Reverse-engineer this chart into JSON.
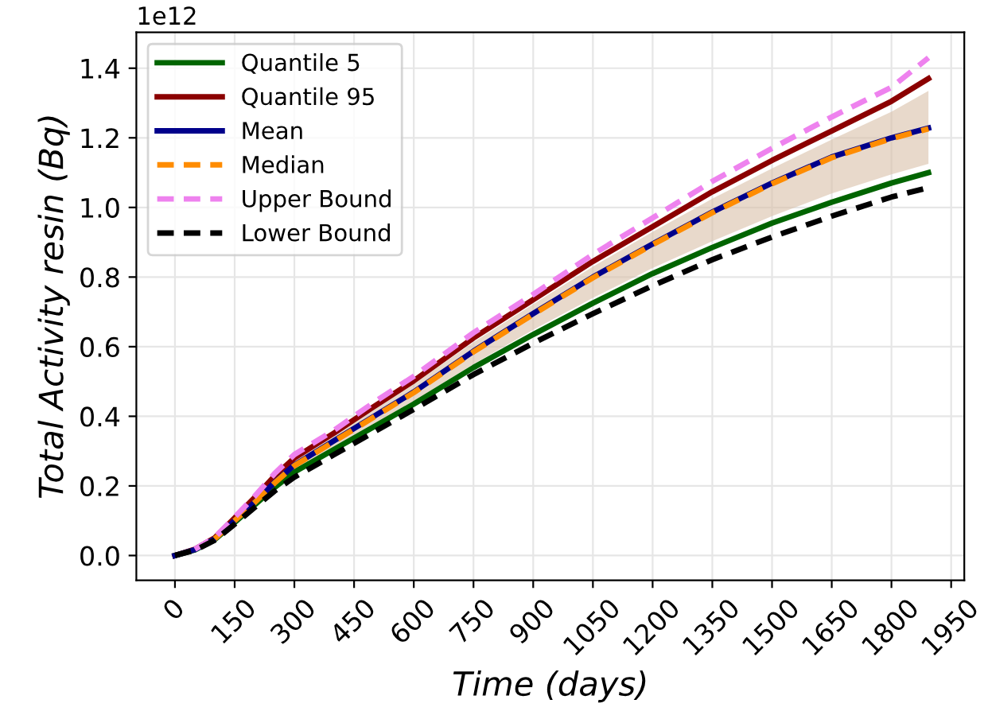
{
  "chart_data": {
    "type": "line",
    "xlabel": "Time (days)",
    "ylabel": "Total Activity resin (Bq)",
    "annotations": [
      "1e12"
    ],
    "x": [
      0,
      50,
      100,
      150,
      200,
      250,
      300,
      400,
      500,
      600,
      750,
      900,
      1050,
      1200,
      1350,
      1500,
      1650,
      1800,
      1893
    ],
    "series": [
      {
        "name": "Quantile 5",
        "color": "#006400",
        "line_style": "solid",
        "values": [
          0,
          0.016,
          0.046,
          0.095,
          0.145,
          0.195,
          0.24,
          0.305,
          0.37,
          0.435,
          0.54,
          0.635,
          0.725,
          0.81,
          0.885,
          0.955,
          1.015,
          1.07,
          1.1
        ]
      },
      {
        "name": "Quantile 95",
        "color": "#8b0000",
        "line_style": "solid",
        "values": [
          0,
          0.018,
          0.051,
          0.108,
          0.166,
          0.228,
          0.28,
          0.352,
          0.428,
          0.502,
          0.625,
          0.735,
          0.845,
          0.945,
          1.045,
          1.135,
          1.22,
          1.305,
          1.37
        ]
      },
      {
        "name": "Mean",
        "color": "#00008b",
        "line_style": "solid",
        "values": [
          0,
          0.017,
          0.048,
          0.1,
          0.153,
          0.21,
          0.26,
          0.33,
          0.4,
          0.47,
          0.587,
          0.695,
          0.8,
          0.895,
          0.987,
          1.07,
          1.145,
          1.2,
          1.228
        ],
        "lower": [
          0,
          0.016,
          0.047,
          0.097,
          0.148,
          0.2,
          0.246,
          0.312,
          0.378,
          0.444,
          0.55,
          0.648,
          0.74,
          0.826,
          0.903,
          0.975,
          1.04,
          1.095,
          1.125
        ],
        "upper": [
          0,
          0.018,
          0.05,
          0.106,
          0.162,
          0.222,
          0.274,
          0.345,
          0.42,
          0.493,
          0.613,
          0.722,
          0.83,
          0.93,
          1.025,
          1.112,
          1.195,
          1.275,
          1.335
        ]
      },
      {
        "name": "Median",
        "color": "#ff8c00",
        "line_style": "dashed",
        "values": [
          null,
          null,
          0.048,
          0.1,
          0.152,
          0.208,
          0.258,
          0.328,
          0.398,
          0.468,
          0.585,
          0.693,
          0.798,
          0.893,
          0.985,
          1.068,
          1.143,
          1.198,
          1.226
        ]
      },
      {
        "name": "Upper Bound",
        "color": "#ee82ee",
        "line_style": "dashed",
        "values": [
          null,
          0.018,
          0.052,
          0.11,
          0.17,
          0.235,
          0.29,
          0.36,
          0.44,
          0.515,
          0.64,
          0.75,
          0.865,
          0.97,
          1.075,
          1.17,
          1.26,
          1.345,
          1.43
        ]
      },
      {
        "name": "Lower Bound",
        "color": "#000000",
        "line_style": "dashed",
        "values": [
          0,
          0.015,
          0.044,
          0.09,
          0.138,
          0.185,
          0.225,
          0.29,
          0.355,
          0.42,
          0.52,
          0.61,
          0.695,
          0.775,
          0.85,
          0.915,
          0.975,
          1.03,
          1.057
        ]
      }
    ],
    "xlim": [
      -97,
      1983
    ],
    "ylim": [
      -0.071,
      1.503
    ],
    "xticks": [
      0,
      150,
      300,
      450,
      600,
      750,
      900,
      1050,
      1200,
      1350,
      1500,
      1650,
      1800,
      1950
    ],
    "yticks": [
      {
        "value": 0,
        "label": "0.0"
      },
      0.2,
      0.4,
      0.6,
      0.8,
      {
        "value": 1,
        "label": "1.0"
      },
      1.2,
      1.4
    ],
    "grid": true,
    "legend": "top left",
    "marker": "none"
  }
}
